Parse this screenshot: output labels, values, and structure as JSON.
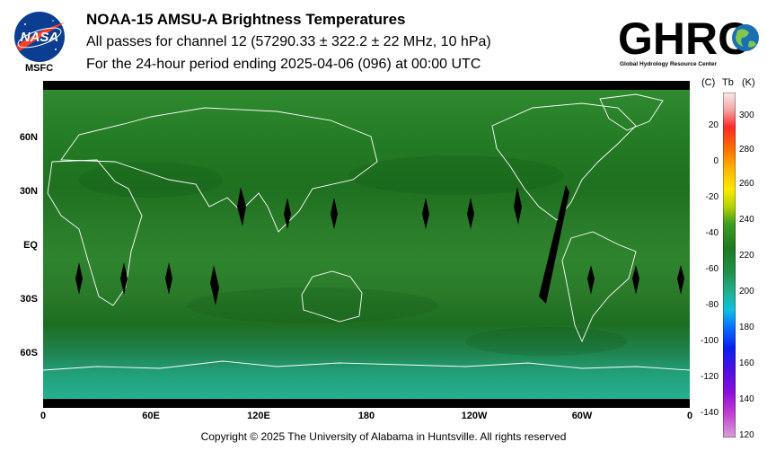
{
  "header": {
    "title": "NOAA-15 AMSU-A Brightness Temperatures",
    "subtitle_1": "All passes for channel 12 (57290.33 ± 322.2 ± 22 MHz, 10 hPa)",
    "subtitle_2": "For the 24-hour period ending 2025-04-06 (096) at 00:00 UTC"
  },
  "logos": {
    "nasa_text": "NASA",
    "msfc_label": "MSFC",
    "ghrc_text": "GHRC",
    "ghrc_tagline": "Global Hydrology Resource Center"
  },
  "map": {
    "lat_labels": [
      "60N",
      "30N",
      "EQ",
      "30S",
      "60S"
    ],
    "lon_labels": [
      "0",
      "60E",
      "120E",
      "180",
      "120W",
      "60W",
      "0"
    ]
  },
  "colorbar": {
    "header_c": "(C)",
    "header_tb": "Tb",
    "header_k": "(K)",
    "kelvin_ticks": [
      "300",
      "280",
      "260",
      "240",
      "220",
      "200",
      "180",
      "160",
      "140",
      "120"
    ],
    "celsius_ticks": [
      "20",
      "0",
      "-20",
      "-40",
      "-60",
      "-80",
      "-100",
      "-120",
      "-140"
    ]
  },
  "footer": {
    "copyright": "Copyright © 2025 The University of Alabama in Huntsville.  All rights reserved"
  }
}
